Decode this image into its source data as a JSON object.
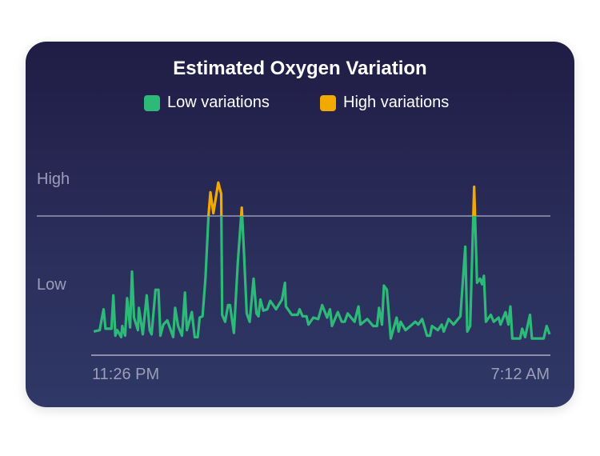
{
  "title": "Estimated Oxygen Variation",
  "legend": [
    {
      "label": "Low variations",
      "color": "#2dba78"
    },
    {
      "label": "High variations",
      "color": "#f2a900"
    }
  ],
  "chart_data": {
    "type": "line",
    "title": "Estimated Oxygen Variation",
    "y_labels": {
      "high": "High",
      "low": "Low"
    },
    "x_labels": {
      "start": "11:26 PM",
      "end": "7:12 AM"
    },
    "x_unit": "minutes since 11:26 PM",
    "xlim": [
      0,
      466
    ],
    "threshold": 100,
    "ylim": [
      0,
      130
    ],
    "points": [
      [
        1,
        17
      ],
      [
        7,
        18
      ],
      [
        11,
        33
      ],
      [
        13,
        19
      ],
      [
        19,
        19
      ],
      [
        21,
        43
      ],
      [
        23,
        14
      ],
      [
        25,
        18
      ],
      [
        29,
        13
      ],
      [
        30,
        21
      ],
      [
        33,
        14
      ],
      [
        35,
        41
      ],
      [
        38,
        20
      ],
      [
        40,
        60
      ],
      [
        42,
        27
      ],
      [
        46,
        18
      ],
      [
        47,
        34
      ],
      [
        51,
        15
      ],
      [
        55,
        43
      ],
      [
        58,
        18
      ],
      [
        60,
        15
      ],
      [
        64,
        47
      ],
      [
        67,
        47
      ],
      [
        69,
        14
      ],
      [
        72,
        22
      ],
      [
        76,
        25
      ],
      [
        82,
        13
      ],
      [
        84,
        34
      ],
      [
        87,
        21
      ],
      [
        91,
        14
      ],
      [
        94,
        45
      ],
      [
        96,
        18
      ],
      [
        101,
        31
      ],
      [
        104,
        13
      ],
      [
        107,
        13
      ],
      [
        109,
        27
      ],
      [
        112,
        28
      ],
      [
        115,
        56
      ],
      [
        118,
        100
      ],
      [
        120,
        117
      ],
      [
        123,
        102
      ],
      [
        128,
        124
      ],
      [
        131,
        116
      ],
      [
        132,
        29
      ],
      [
        135,
        24
      ],
      [
        138,
        36
      ],
      [
        140,
        36
      ],
      [
        144,
        16
      ],
      [
        148,
        67
      ],
      [
        152,
        106
      ],
      [
        154,
        77
      ],
      [
        157,
        30
      ],
      [
        160,
        24
      ],
      [
        164,
        55
      ],
      [
        167,
        30
      ],
      [
        169,
        28
      ],
      [
        171,
        40
      ],
      [
        174,
        32
      ],
      [
        178,
        33
      ],
      [
        181,
        39
      ],
      [
        187,
        33
      ],
      [
        193,
        40
      ],
      [
        196,
        52
      ],
      [
        197,
        35
      ],
      [
        203,
        29
      ],
      [
        209,
        29
      ],
      [
        211,
        33
      ],
      [
        214,
        28
      ],
      [
        218,
        28
      ],
      [
        220,
        22
      ],
      [
        225,
        27
      ],
      [
        230,
        26
      ],
      [
        234,
        36
      ],
      [
        239,
        27
      ],
      [
        242,
        33
      ],
      [
        244,
        21
      ],
      [
        250,
        31
      ],
      [
        254,
        24
      ],
      [
        257,
        24
      ],
      [
        260,
        30
      ],
      [
        267,
        24
      ],
      [
        271,
        35
      ],
      [
        273,
        22
      ],
      [
        280,
        26
      ],
      [
        286,
        21
      ],
      [
        290,
        21
      ],
      [
        292,
        34
      ],
      [
        295,
        22
      ],
      [
        297,
        50
      ],
      [
        300,
        47
      ],
      [
        304,
        12
      ],
      [
        310,
        27
      ],
      [
        312,
        17
      ],
      [
        314,
        24
      ],
      [
        319,
        18
      ],
      [
        324,
        21
      ],
      [
        329,
        24
      ],
      [
        332,
        22
      ],
      [
        336,
        26
      ],
      [
        341,
        14
      ],
      [
        344,
        14
      ],
      [
        346,
        21
      ],
      [
        352,
        18
      ],
      [
        356,
        22
      ],
      [
        358,
        17
      ],
      [
        363,
        26
      ],
      [
        368,
        22
      ],
      [
        375,
        28
      ],
      [
        380,
        78
      ],
      [
        382,
        17
      ],
      [
        385,
        21
      ],
      [
        389,
        121
      ],
      [
        392,
        52
      ],
      [
        395,
        55
      ],
      [
        397,
        51
      ],
      [
        399,
        57
      ],
      [
        401,
        24
      ],
      [
        406,
        29
      ],
      [
        409,
        24
      ],
      [
        414,
        27
      ],
      [
        416,
        22
      ],
      [
        421,
        31
      ],
      [
        424,
        22
      ],
      [
        426,
        35
      ],
      [
        428,
        12
      ],
      [
        436,
        12
      ],
      [
        438,
        19
      ],
      [
        441,
        13
      ],
      [
        446,
        29
      ],
      [
        448,
        12
      ],
      [
        460,
        12
      ],
      [
        463,
        21
      ],
      [
        466,
        15
      ]
    ]
  }
}
